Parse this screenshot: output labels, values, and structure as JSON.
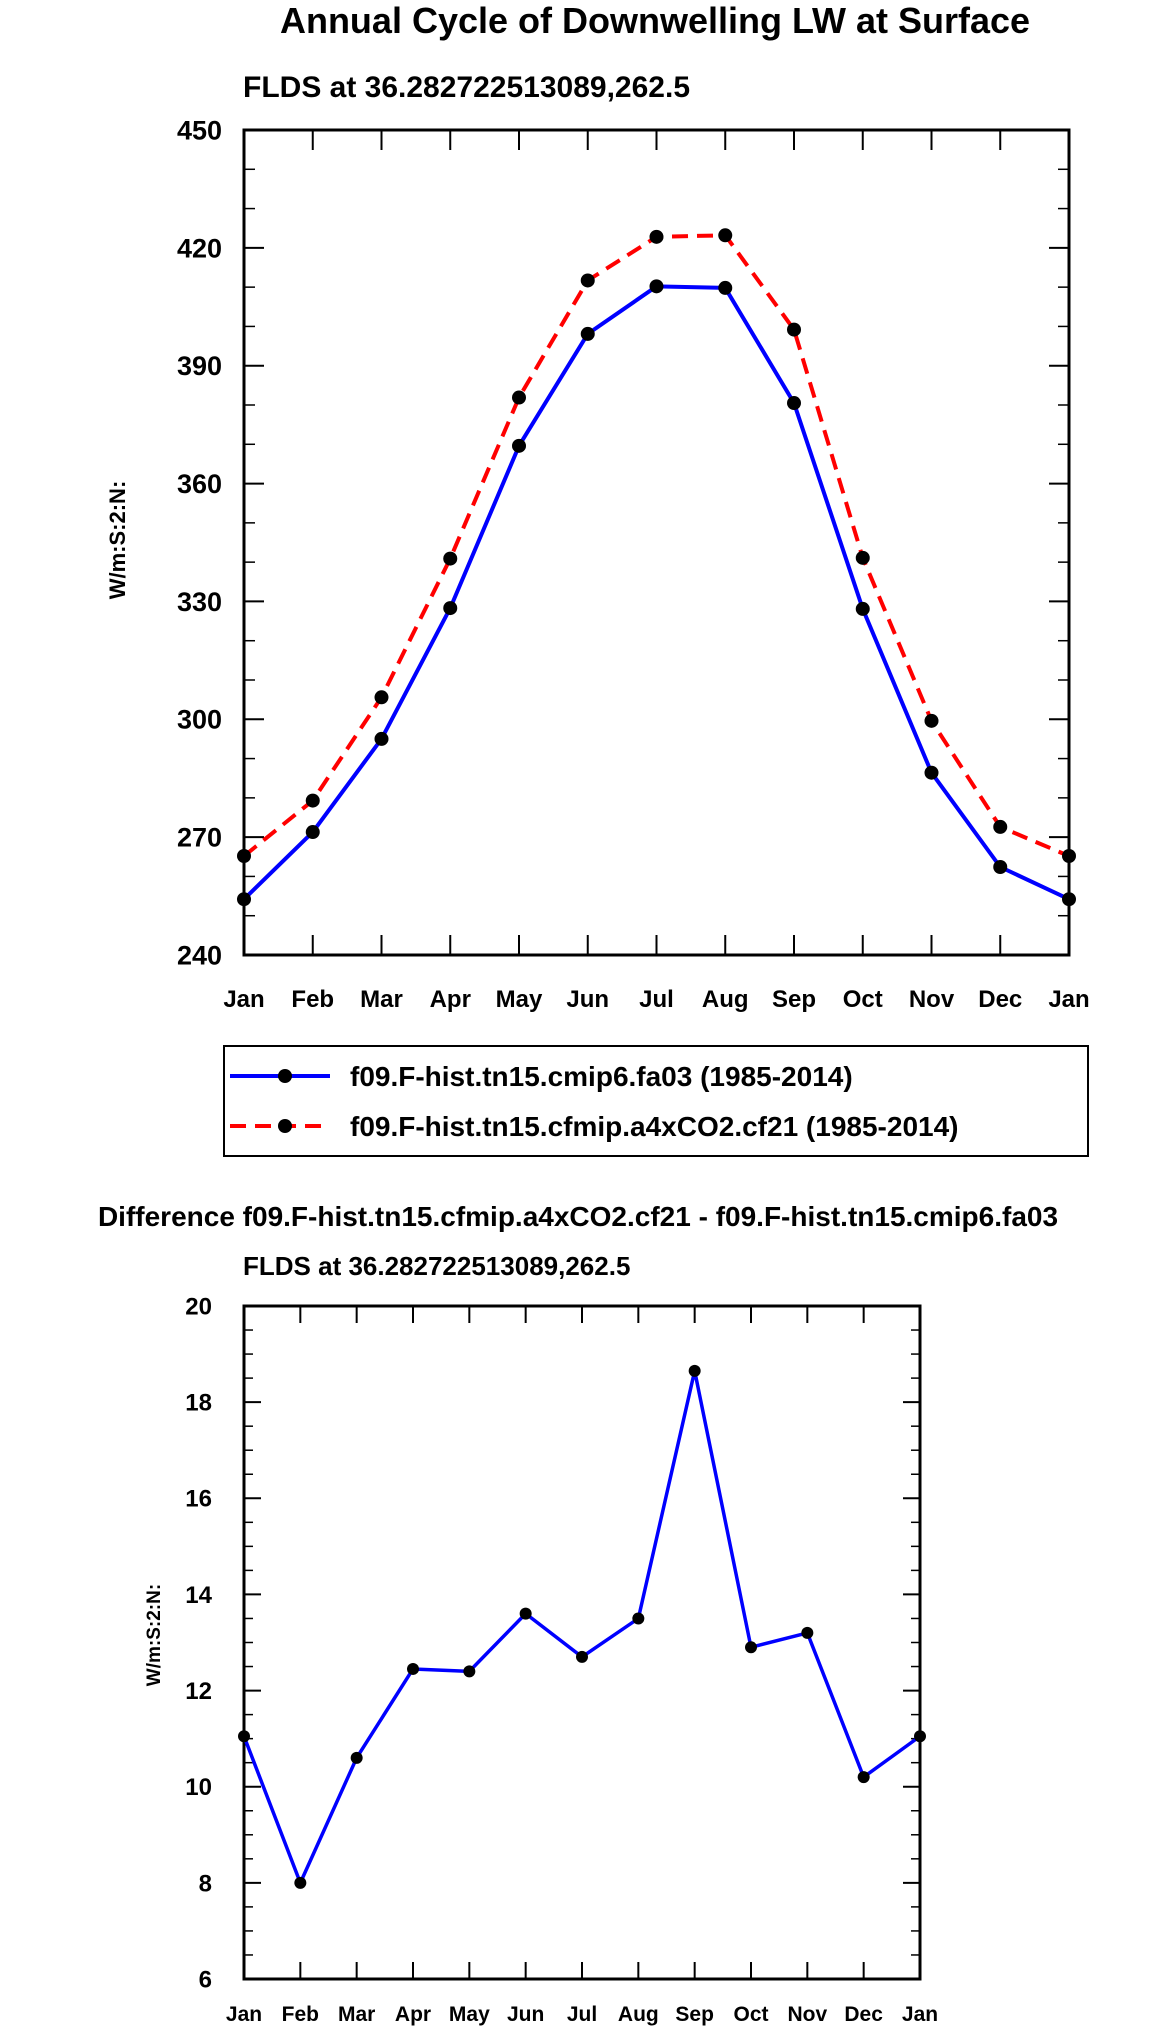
{
  "chart_data": [
    {
      "type": "line",
      "title": "Annual Cycle of Downwelling LW at Surface",
      "subtitle": "FLDS at 36.282722513089,262.5",
      "xlabel": "",
      "ylabel": "W/m:S:2:N:",
      "categories": [
        "Jan",
        "Feb",
        "Mar",
        "Apr",
        "May",
        "Jun",
        "Jul",
        "Aug",
        "Sep",
        "Oct",
        "Nov",
        "Dec",
        "Jan"
      ],
      "ylim": [
        240,
        450
      ],
      "yticks": [
        240,
        270,
        300,
        330,
        360,
        390,
        420,
        450
      ],
      "legend_position": "below",
      "series": [
        {
          "name": "f09.F-hist.tn15.cmip6.fa03 (1985-2014)",
          "color": "#0000ff",
          "dash": "solid",
          "values": [
            254.2,
            271.3,
            295.0,
            328.3,
            369.6,
            398.1,
            410.2,
            409.8,
            380.5,
            328.1,
            286.4,
            262.4,
            254.2
          ]
        },
        {
          "name": "f09.F-hist.tn15.cfmip.a4xCO2.cf21 (1985-2014)",
          "color": "#ff0000",
          "dash": "dashed",
          "values": [
            265.2,
            279.3,
            305.6,
            340.9,
            381.9,
            411.7,
            422.8,
            423.2,
            399.2,
            341.1,
            299.6,
            272.6,
            265.2
          ]
        }
      ]
    },
    {
      "type": "line",
      "title": "Difference f09.F-hist.tn15.cfmip.a4xCO2.cf21 - f09.F-hist.tn15.cmip6.fa03",
      "subtitle": "FLDS at 36.282722513089,262.5",
      "xlabel": "",
      "ylabel": "W/m:S:2:N:",
      "categories": [
        "Jan",
        "Feb",
        "Mar",
        "Apr",
        "May",
        "Jun",
        "Jul",
        "Aug",
        "Sep",
        "Oct",
        "Nov",
        "Dec",
        "Jan"
      ],
      "ylim": [
        6,
        20
      ],
      "yticks": [
        6,
        8,
        10,
        12,
        14,
        16,
        18,
        20
      ],
      "series": [
        {
          "name": "difference",
          "color": "#0000ff",
          "dash": "solid",
          "values": [
            11.05,
            8.0,
            10.6,
            12.45,
            12.4,
            13.6,
            12.7,
            13.5,
            18.65,
            12.9,
            13.2,
            10.2,
            11.05
          ]
        }
      ]
    }
  ]
}
